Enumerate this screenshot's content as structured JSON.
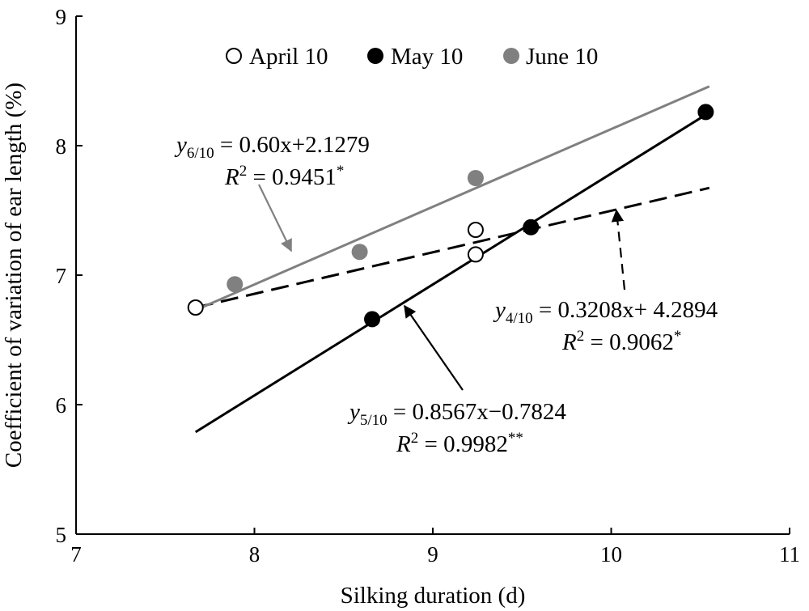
{
  "chart_data": {
    "type": "scatter",
    "xlabel": "Silking duration (d)",
    "ylabel": "Coefficient of variation of ear length (%)",
    "xlim": [
      7,
      11
    ],
    "ylim": [
      5,
      9
    ],
    "xticks": [
      "7",
      "8",
      "9",
      "10",
      "11"
    ],
    "yticks": [
      "5",
      "6",
      "7",
      "8",
      "9"
    ],
    "grid": false,
    "legend_position": "top-center",
    "series": [
      {
        "name": "April 10",
        "marker": "open-circle",
        "color": "#000000",
        "points": [
          [
            7.67,
            6.75
          ],
          [
            9.24,
            7.16
          ],
          [
            9.24,
            7.35
          ]
        ],
        "fit": {
          "slope": 0.3208,
          "intercept": 4.2894,
          "x_range": [
            7.67,
            10.55
          ],
          "style": "dashed"
        }
      },
      {
        "name": "May 10",
        "marker": "filled-circle",
        "color": "#000000",
        "points": [
          [
            8.66,
            6.66
          ],
          [
            9.55,
            7.37
          ],
          [
            10.53,
            8.26
          ]
        ],
        "fit": {
          "slope": 0.8567,
          "intercept": -0.7824,
          "x_range": [
            7.67,
            10.53
          ],
          "style": "solid"
        }
      },
      {
        "name": "June 10",
        "marker": "filled-circle",
        "color": "#808080",
        "points": [
          [
            7.89,
            6.93
          ],
          [
            8.59,
            7.18
          ],
          [
            9.24,
            7.75
          ]
        ],
        "fit": {
          "slope": 0.6,
          "intercept": 2.1279,
          "x_range": [
            7.67,
            10.55
          ],
          "style": "solid"
        }
      }
    ],
    "annotations": {
      "june": {
        "y_sub": "6/10",
        "equation": "= 0.60x+2.1279",
        "r2": "= 0.9451",
        "sig": "*"
      },
      "april": {
        "y_sub": "4/10",
        "equation": "= 0.3208x+ 4.2894",
        "r2": "= 0.9062",
        "sig": "*"
      },
      "may": {
        "y_sub": "5/10",
        "equation": "= 0.8567x−0.7824",
        "r2": "= 0.9982",
        "sig": "**"
      }
    }
  }
}
